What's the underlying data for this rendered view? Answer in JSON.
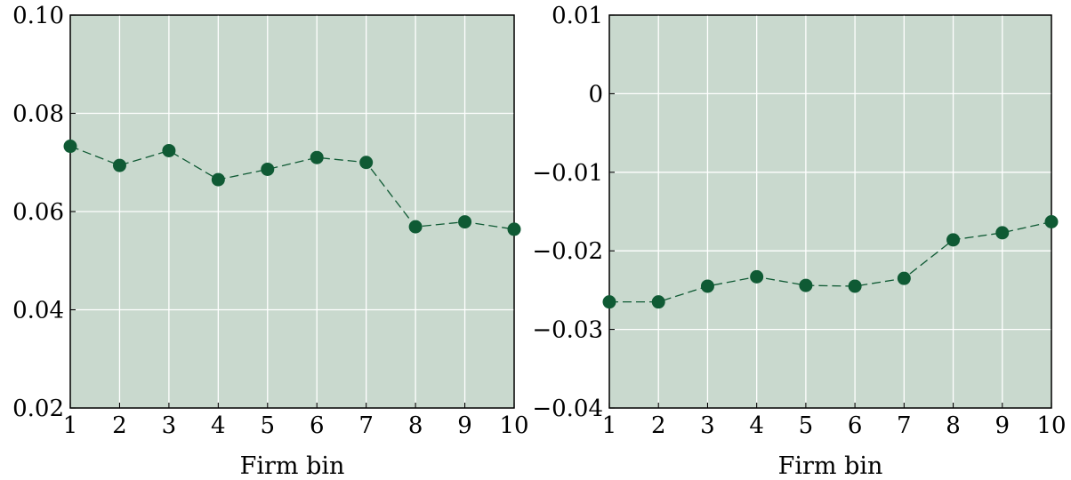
{
  "colors": {
    "plot_background": "#c9d9ce",
    "marker": "#0f5a34",
    "line": "#0f5a34",
    "grid": "#ffffff"
  },
  "chart_data": [
    {
      "type": "line",
      "title": "",
      "xlabel": "Firm bin",
      "ylabel": "",
      "grid": true,
      "line_style": "dashed",
      "marker": "filled-circle",
      "xlim": [
        1,
        10
      ],
      "ylim": [
        0.02,
        0.1
      ],
      "x_ticks": [
        "1",
        "2",
        "3",
        "4",
        "5",
        "6",
        "7",
        "8",
        "9",
        "10"
      ],
      "y_ticks": [
        0.02,
        0.04,
        0.06,
        0.08,
        0.1
      ],
      "y_tick_labels": [
        "0.02",
        "0.04",
        "0.06",
        "0.08",
        "0.10"
      ],
      "x": [
        1,
        2,
        3,
        4,
        5,
        6,
        7,
        8,
        9,
        10
      ],
      "series": [
        {
          "name": "",
          "values": [
            0.0733,
            0.0694,
            0.0724,
            0.0665,
            0.0686,
            0.071,
            0.07,
            0.0569,
            0.0579,
            0.0564
          ]
        }
      ]
    },
    {
      "type": "line",
      "title": "",
      "xlabel": "Firm bin",
      "ylabel": "",
      "grid": true,
      "line_style": "dashed",
      "marker": "filled-circle",
      "xlim": [
        1,
        10
      ],
      "ylim": [
        -0.04,
        0.01
      ],
      "x_ticks": [
        "1",
        "2",
        "3",
        "4",
        "5",
        "6",
        "7",
        "8",
        "9",
        "10"
      ],
      "y_ticks": [
        -0.04,
        -0.03,
        -0.02,
        -0.01,
        0,
        0.01
      ],
      "y_tick_labels": [
        "−0.04",
        "−0.03",
        "−0.02",
        "−0.01",
        "0",
        "0.01"
      ],
      "x": [
        1,
        2,
        3,
        4,
        5,
        6,
        7,
        8,
        9,
        10
      ],
      "series": [
        {
          "name": "",
          "values": [
            -0.0265,
            -0.0265,
            -0.0245,
            -0.0233,
            -0.0244,
            -0.0245,
            -0.0235,
            -0.0186,
            -0.0177,
            -0.0163
          ]
        }
      ]
    }
  ]
}
